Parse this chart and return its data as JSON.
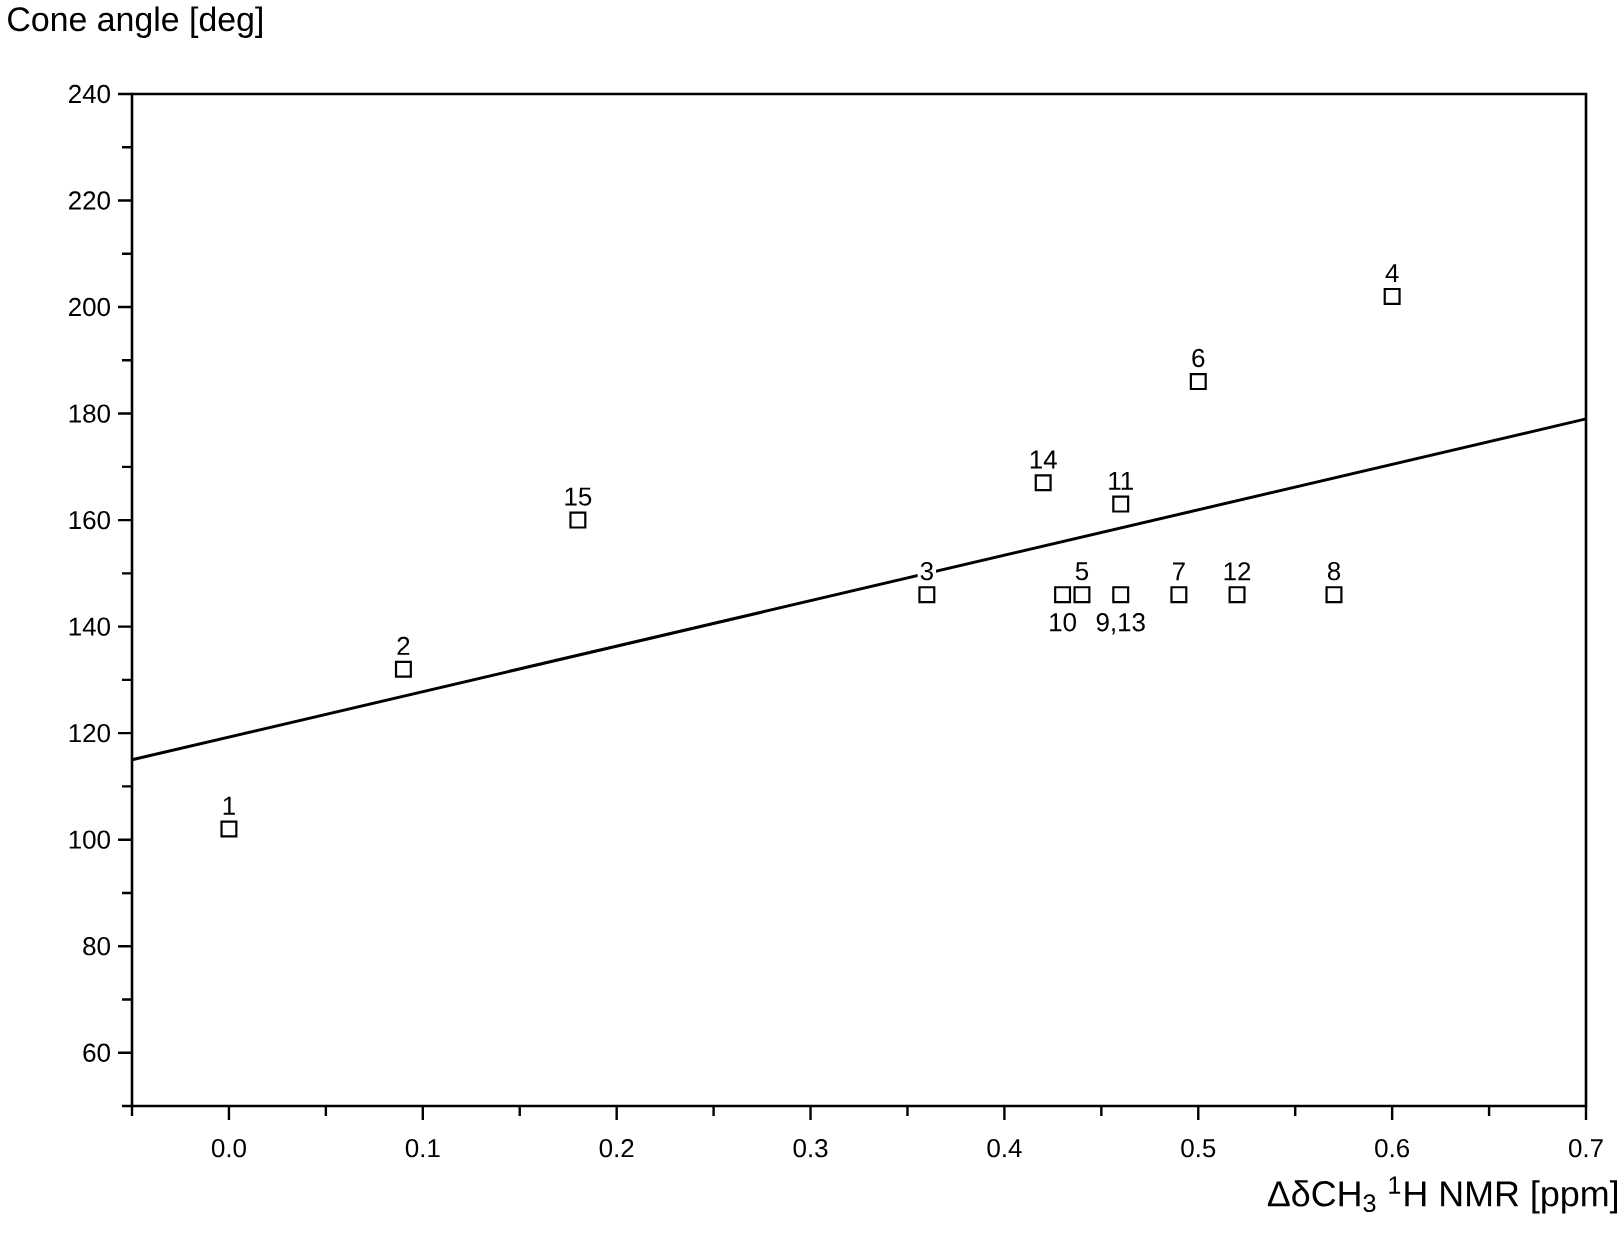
{
  "chart_data": {
    "type": "scatter",
    "xlabel": "ΔδCH$_{3}$ $^{1}$H NMR  [ppm]",
    "ylabel": "Cone angle [deg]",
    "marker": "square",
    "xlim": [
      -0.05,
      0.7
    ],
    "ylim": [
      50,
      240
    ],
    "xticks": [
      {
        "value": -0.05,
        "label": null
      },
      {
        "value": 0,
        "label": "0.0"
      },
      {
        "value": 0.05,
        "label": null
      },
      0.1,
      {
        "value": 0.15,
        "label": null
      },
      0.2,
      {
        "value": 0.25,
        "label": null
      },
      0.3,
      {
        "value": 0.35,
        "label": null
      },
      0.4,
      {
        "value": 0.45,
        "label": null
      },
      0.5,
      {
        "value": 0.55,
        "label": null
      },
      0.6,
      {
        "value": 0.65,
        "label": null
      },
      0.7
    ],
    "yticks": [
      {
        "value": 50,
        "label": null
      },
      60,
      {
        "value": 70,
        "label": null
      },
      80,
      {
        "value": 90,
        "label": null
      },
      100,
      {
        "value": 110,
        "label": null
      },
      120,
      {
        "value": 130,
        "label": null
      },
      140,
      {
        "value": 150,
        "label": null
      },
      160,
      {
        "value": 170,
        "label": null
      },
      180,
      {
        "value": 190,
        "label": null
      },
      200,
      {
        "value": 210,
        "label": null
      },
      220,
      {
        "value": 230,
        "label": null
      },
      240
    ],
    "series": [
      {
        "color": "#000000",
        "x": [
          0.0,
          0.09,
          0.36,
          0.6,
          0.44,
          0.5,
          0.49,
          0.57,
          0.46,
          0.43,
          0.46,
          0.52,
          0.42,
          0.18
        ],
        "values": [
          102,
          132,
          146,
          202,
          146,
          186,
          146,
          146,
          146,
          146,
          163,
          146,
          167,
          160
        ]
      },
      {
        "type": "line",
        "color": "#000000",
        "marker": "none",
        "line_style": "solid",
        "x": [
          -0.05,
          0.7
        ],
        "values": [
          115,
          179
        ]
      }
    ],
    "annotations": [
      {
        "text": "1",
        "x": 0.0,
        "y": 102
      },
      {
        "text": "2",
        "x": 0.09,
        "y": 132
      },
      {
        "text": "3",
        "x": 0.36,
        "y": 146
      },
      {
        "text": "4",
        "x": 0.6,
        "y": 202
      },
      {
        "text": "5",
        "x": 0.44,
        "y": 146
      },
      {
        "text": "6",
        "x": 0.5,
        "y": 186
      },
      {
        "text": "7",
        "x": 0.49,
        "y": 146
      },
      {
        "text": "8",
        "x": 0.57,
        "y": 146
      },
      {
        "text": "9,13",
        "x": 0.46,
        "y": 146
      },
      {
        "text": "10",
        "x": 0.43,
        "y": 146
      },
      {
        "text": "11",
        "x": 0.46,
        "y": 163
      },
      {
        "text": "12",
        "x": 0.52,
        "y": 146
      },
      {
        "text": "14",
        "x": 0.42,
        "y": 167
      },
      {
        "text": "15",
        "x": 0.18,
        "y": 160
      }
    ]
  }
}
